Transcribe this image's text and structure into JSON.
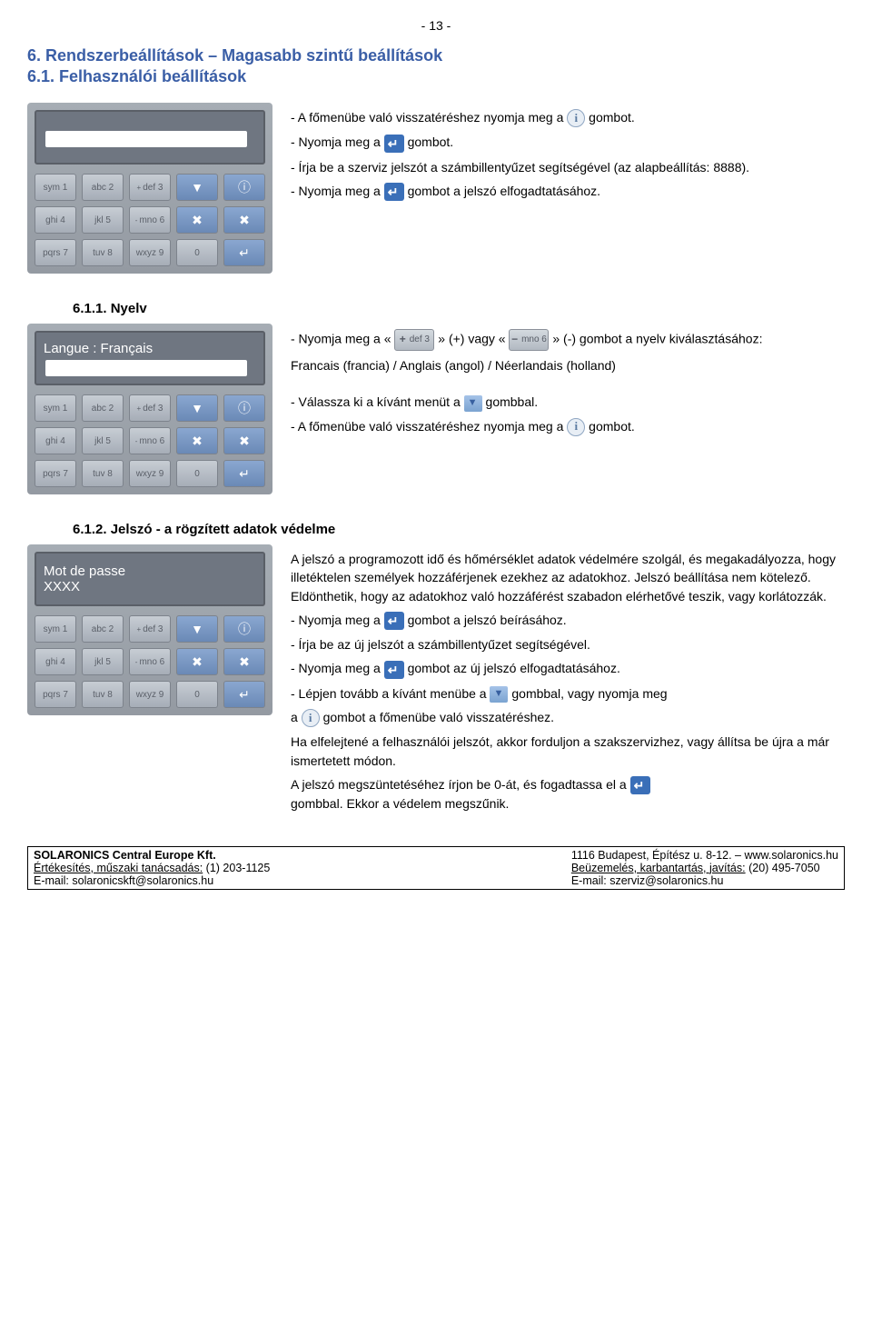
{
  "pageNumber": "- 13 -",
  "h1": "6. Rendszerbeállítások – Magasabb szintű beállítások",
  "h2": "6.1. Felhasználói beállítások",
  "sectionA": {
    "l1a": "- A főmenübe való visszatéréshez nyomja meg a ",
    "l1b": " gombot.",
    "l2a": "- Nyomja meg a ",
    "l2b": " gombot.",
    "l3": "- Írja be a szerviz jelszót a számbillentyűzet segítségével (az alapbeállítás: 8888).",
    "l4a": "- Nyomja meg a ",
    "l4b": " gombot a jelszó elfogadtatásához."
  },
  "h3a": "6.1.1. Nyelv",
  "display2": "Langue : Français",
  "sectionB": {
    "l1a": "- Nyomja meg a « ",
    "plusKey": {
      "sup": "+",
      "txt": "def 3"
    },
    "l1b": " » (+) vagy « ",
    "minusKey": {
      "sup": "-",
      "txt": "mno 6"
    },
    "l1c": " » (-) gombot a nyelv kiválasztásához:",
    "langs": "Francais (francia) / Anglais (angol) / Néerlandais (holland)",
    "l3a": "- Válassza ki a kívánt menüt a ",
    "l3b": " gombbal.",
    "l4a": "- A főmenübe való visszatéréshez nyomja meg a ",
    "l4b": " gombot."
  },
  "h3b": "6.1.2. Jelszó - a rögzített adatok védelme",
  "display3a": "Mot de passe",
  "display3b": "XXXX",
  "sectionC": {
    "p1": "A jelszó a programozott idő és hőmérséklet adatok védelmére szolgál, és megakadályozza, hogy illetéktelen személyek hozzáférjenek ezekhez az adatokhoz. Jelszó beállítása nem kötelező. Eldönthetik, hogy az adatokhoz való hozzáférést szabadon elérhetővé teszik, vagy korlátozzák.",
    "l2a": "- Nyomja meg a ",
    "l2b": " gombot a jelszó beírásához.",
    "l3": "- Írja be az új jelszót a számbillentyűzet segítségével.",
    "l4a": "- Nyomja meg a ",
    "l4b": " gombot az új jelszó elfogadtatásához.",
    "l5a": "- Lépjen tovább a kívánt menübe a ",
    "l5b": " gombbal, vagy nyomja meg",
    "l6a": "a ",
    "l6b": " gombot a főmenübe való visszatéréshez.",
    "p2": "Ha elfelejtené a felhasználói jelszót, akkor forduljon a szakszervizhez, vagy állítsa be újra a már ismertetett módon.",
    "l7a": "A jelszó megszüntetéséhez írjon be 0-át, és fogadtassa el a ",
    "l7b": " gombbal. Ekkor a védelem megszűnik."
  },
  "keypad": {
    "rows": [
      [
        {
          "t": "sym 1"
        },
        {
          "t": "abc 2"
        },
        {
          "t": "def 3",
          "sup": "+"
        },
        {
          "fn": "▼"
        },
        {
          "fn": "ⓘ"
        }
      ],
      [
        {
          "t": "ghi 4"
        },
        {
          "t": "jkl 5"
        },
        {
          "t": "mno 6",
          "sup": "-"
        },
        {
          "fn": "✖"
        },
        {
          "fn": "✖"
        }
      ],
      [
        {
          "t": "pqrs 7"
        },
        {
          "t": "tuv 8"
        },
        {
          "t": "wxyz 9"
        },
        {
          "t": "0"
        },
        {
          "fn": "↵"
        }
      ]
    ],
    "thermRow": [
      {
        "red": "!"
      }
    ]
  },
  "footer": {
    "left": {
      "l1": "SOLARONICS Central Europe Kft.",
      "l2a": "Értékesítés, műszaki tanácsadás:",
      "l2b": " (1) 203-1125",
      "l3": "E-mail: solaronicskft@solaronics.hu"
    },
    "right": {
      "l1": "1116 Budapest, Építész u. 8-12. – www.solaronics.hu",
      "l2a": "Beüzemelés, karbantartás, javítás:",
      "l2b": " (20) 495-7050",
      "l3": "E-mail: szerviz@solaronics.hu"
    }
  }
}
